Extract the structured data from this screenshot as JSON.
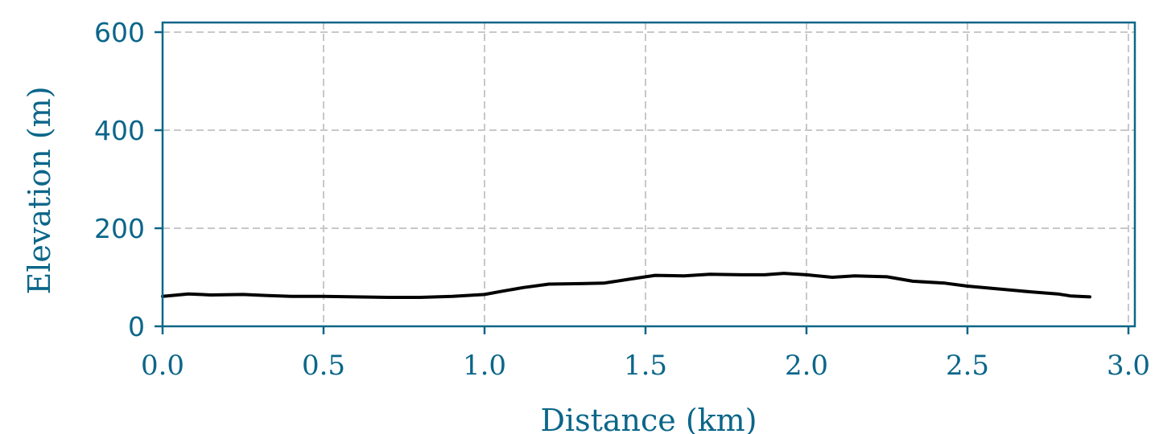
{
  "colors": {
    "axis": "#0b6689",
    "grid": "#c8c8c8",
    "line": "#000000"
  },
  "chart_data": {
    "type": "line",
    "xlabel": "Distance (km)",
    "ylabel": "Elevation (m)",
    "xlim": [
      0.0,
      3.0
    ],
    "ylim": [
      0,
      600
    ],
    "xticks": [
      0.0,
      0.5,
      1.0,
      1.5,
      2.0,
      2.5,
      3.0
    ],
    "xtick_labels": [
      "0.0",
      "0.5",
      "1.0",
      "1.5",
      "2.0",
      "2.5",
      "3.0"
    ],
    "yticks": [
      0,
      200,
      400,
      600
    ],
    "ytick_labels": [
      "0",
      "200",
      "400",
      "600"
    ],
    "grid": true,
    "grid_style": "dashed",
    "series": [
      {
        "x": [
          0.0,
          0.08,
          0.15,
          0.25,
          0.32,
          0.4,
          0.5,
          0.6,
          0.7,
          0.8,
          0.9,
          1.0,
          1.05,
          1.12,
          1.2,
          1.3,
          1.37,
          1.45,
          1.53,
          1.62,
          1.7,
          1.8,
          1.87,
          1.93,
          2.0,
          2.08,
          2.15,
          2.25,
          2.33,
          2.43,
          2.5,
          2.6,
          2.7,
          2.78,
          2.82,
          2.88
        ],
        "y": [
          61,
          66,
          64,
          65,
          63,
          61,
          61,
          60,
          59,
          59,
          61,
          65,
          71,
          79,
          86,
          87,
          88,
          96,
          104,
          103,
          106,
          105,
          105,
          108,
          105,
          100,
          103,
          101,
          92,
          88,
          82,
          76,
          70,
          66,
          62,
          60
        ]
      }
    ]
  }
}
